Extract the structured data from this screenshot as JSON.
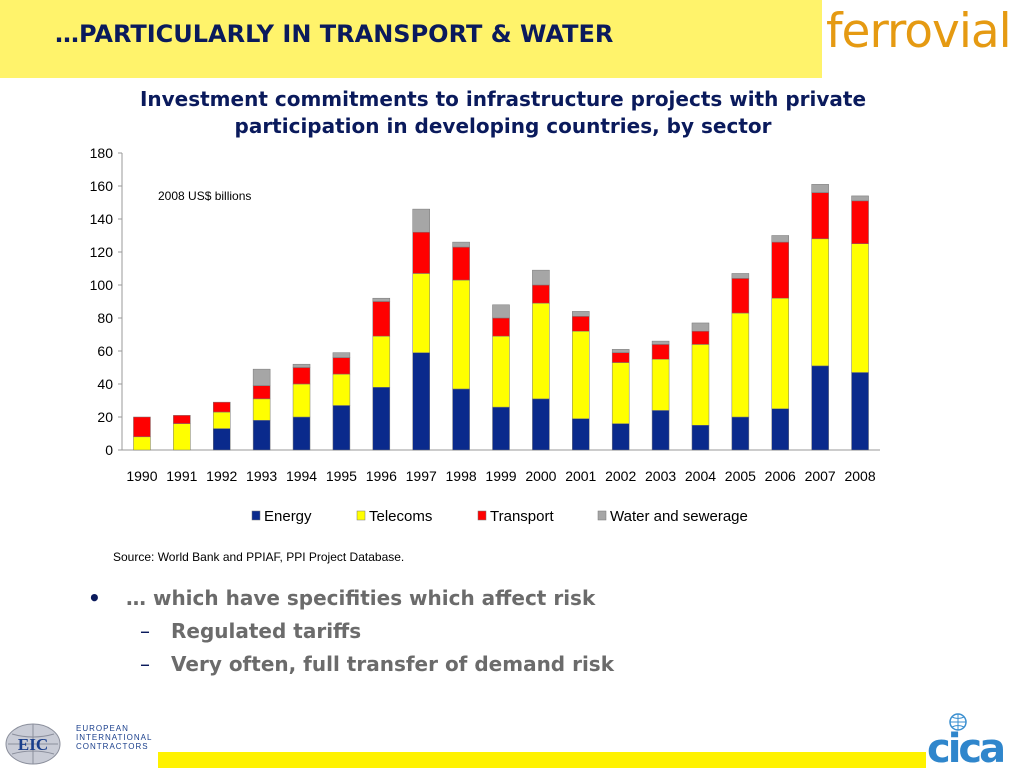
{
  "header": {
    "title": "…PARTICULARLY IN TRANSPORT & WATER",
    "brand": "ferrovial"
  },
  "chart_data": {
    "type": "bar",
    "stacked": true,
    "title": "Investment commitments to infrastructure projects with private participation in developing countries, by sector",
    "unit_note": "2008 US$ billions",
    "categories": [
      "1990",
      "1991",
      "1992",
      "1993",
      "1994",
      "1995",
      "1996",
      "1997",
      "1998",
      "1999",
      "2000",
      "2001",
      "2002",
      "2003",
      "2004",
      "2005",
      "2006",
      "2007",
      "2008"
    ],
    "series": [
      {
        "name": "Energy",
        "color": "#0a2a8c",
        "values": [
          0,
          0,
          13,
          18,
          20,
          27,
          38,
          59,
          37,
          26,
          31,
          19,
          16,
          24,
          15,
          20,
          25,
          51,
          47
        ]
      },
      {
        "name": "Telecoms",
        "color": "#ffff00",
        "values": [
          8,
          16,
          10,
          13,
          20,
          19,
          31,
          48,
          66,
          43,
          58,
          53,
          37,
          31,
          49,
          63,
          67,
          77,
          78
        ]
      },
      {
        "name": "Transport",
        "color": "#ff0000",
        "values": [
          12,
          5,
          6,
          8,
          10,
          10,
          21,
          25,
          20,
          11,
          11,
          9,
          6,
          9,
          8,
          21,
          34,
          28,
          26
        ]
      },
      {
        "name": "Water and sewerage",
        "color": "#a6a6a6",
        "values": [
          0,
          0,
          0,
          10,
          2,
          3,
          2,
          14,
          3,
          8,
          9,
          3,
          2,
          2,
          5,
          3,
          4,
          5,
          3
        ]
      }
    ],
    "y_ticks": [
      0,
      20,
      40,
      60,
      80,
      100,
      120,
      140,
      160,
      180
    ],
    "ylim": [
      0,
      180
    ],
    "legend_position": "bottom",
    "source": "Source: World Bank and PPIAF, PPI Project Database."
  },
  "bullets": {
    "main": "… which have specifities which affect risk",
    "main_marker": "•",
    "sub_marker": "–",
    "subs": [
      "Regulated tariffs",
      "Very often, full transfer of demand risk"
    ]
  },
  "footer": {
    "eic_abbrev": "EIC",
    "eic_line1": "EUROPEAN",
    "eic_line2": "INTERNATIONAL",
    "eic_line3": "CONTRACTORS",
    "cica_logo": "cica"
  }
}
